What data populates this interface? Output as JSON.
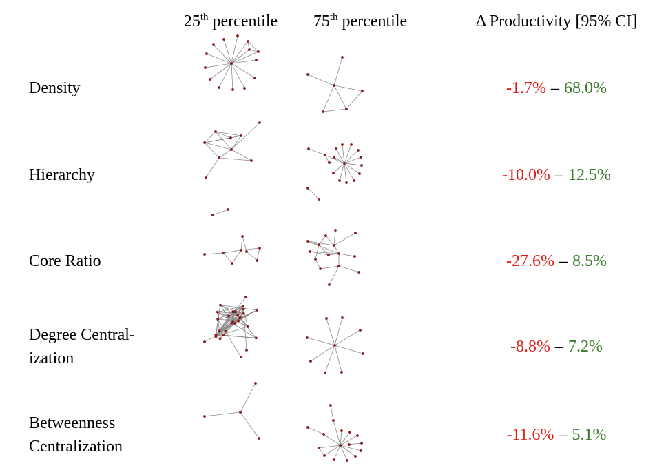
{
  "header": {
    "col1": {
      "number": "25",
      "suffix": "th",
      "text": "percentile"
    },
    "col2": {
      "number": "75",
      "suffix": "th",
      "text": "percentile"
    },
    "col3": "Δ Productivity [95% CI]"
  },
  "separator": "–",
  "rows": [
    {
      "label": [
        "Density"
      ],
      "low": "-1.7%",
      "high": "68.0%"
    },
    {
      "label": [
        "Hierarchy"
      ],
      "low": "-10.0%",
      "high": "12.5%"
    },
    {
      "label": [
        "Core Ratio"
      ],
      "low": "-27.6%",
      "high": "8.5%"
    },
    {
      "label": [
        "Degree Central-",
        "ization"
      ],
      "low": "-8.8%",
      "high": "7.2%"
    },
    {
      "label": [
        "Betweenness",
        "Centralization"
      ],
      "low": "-11.6%",
      "high": "5.1%"
    }
  ]
}
